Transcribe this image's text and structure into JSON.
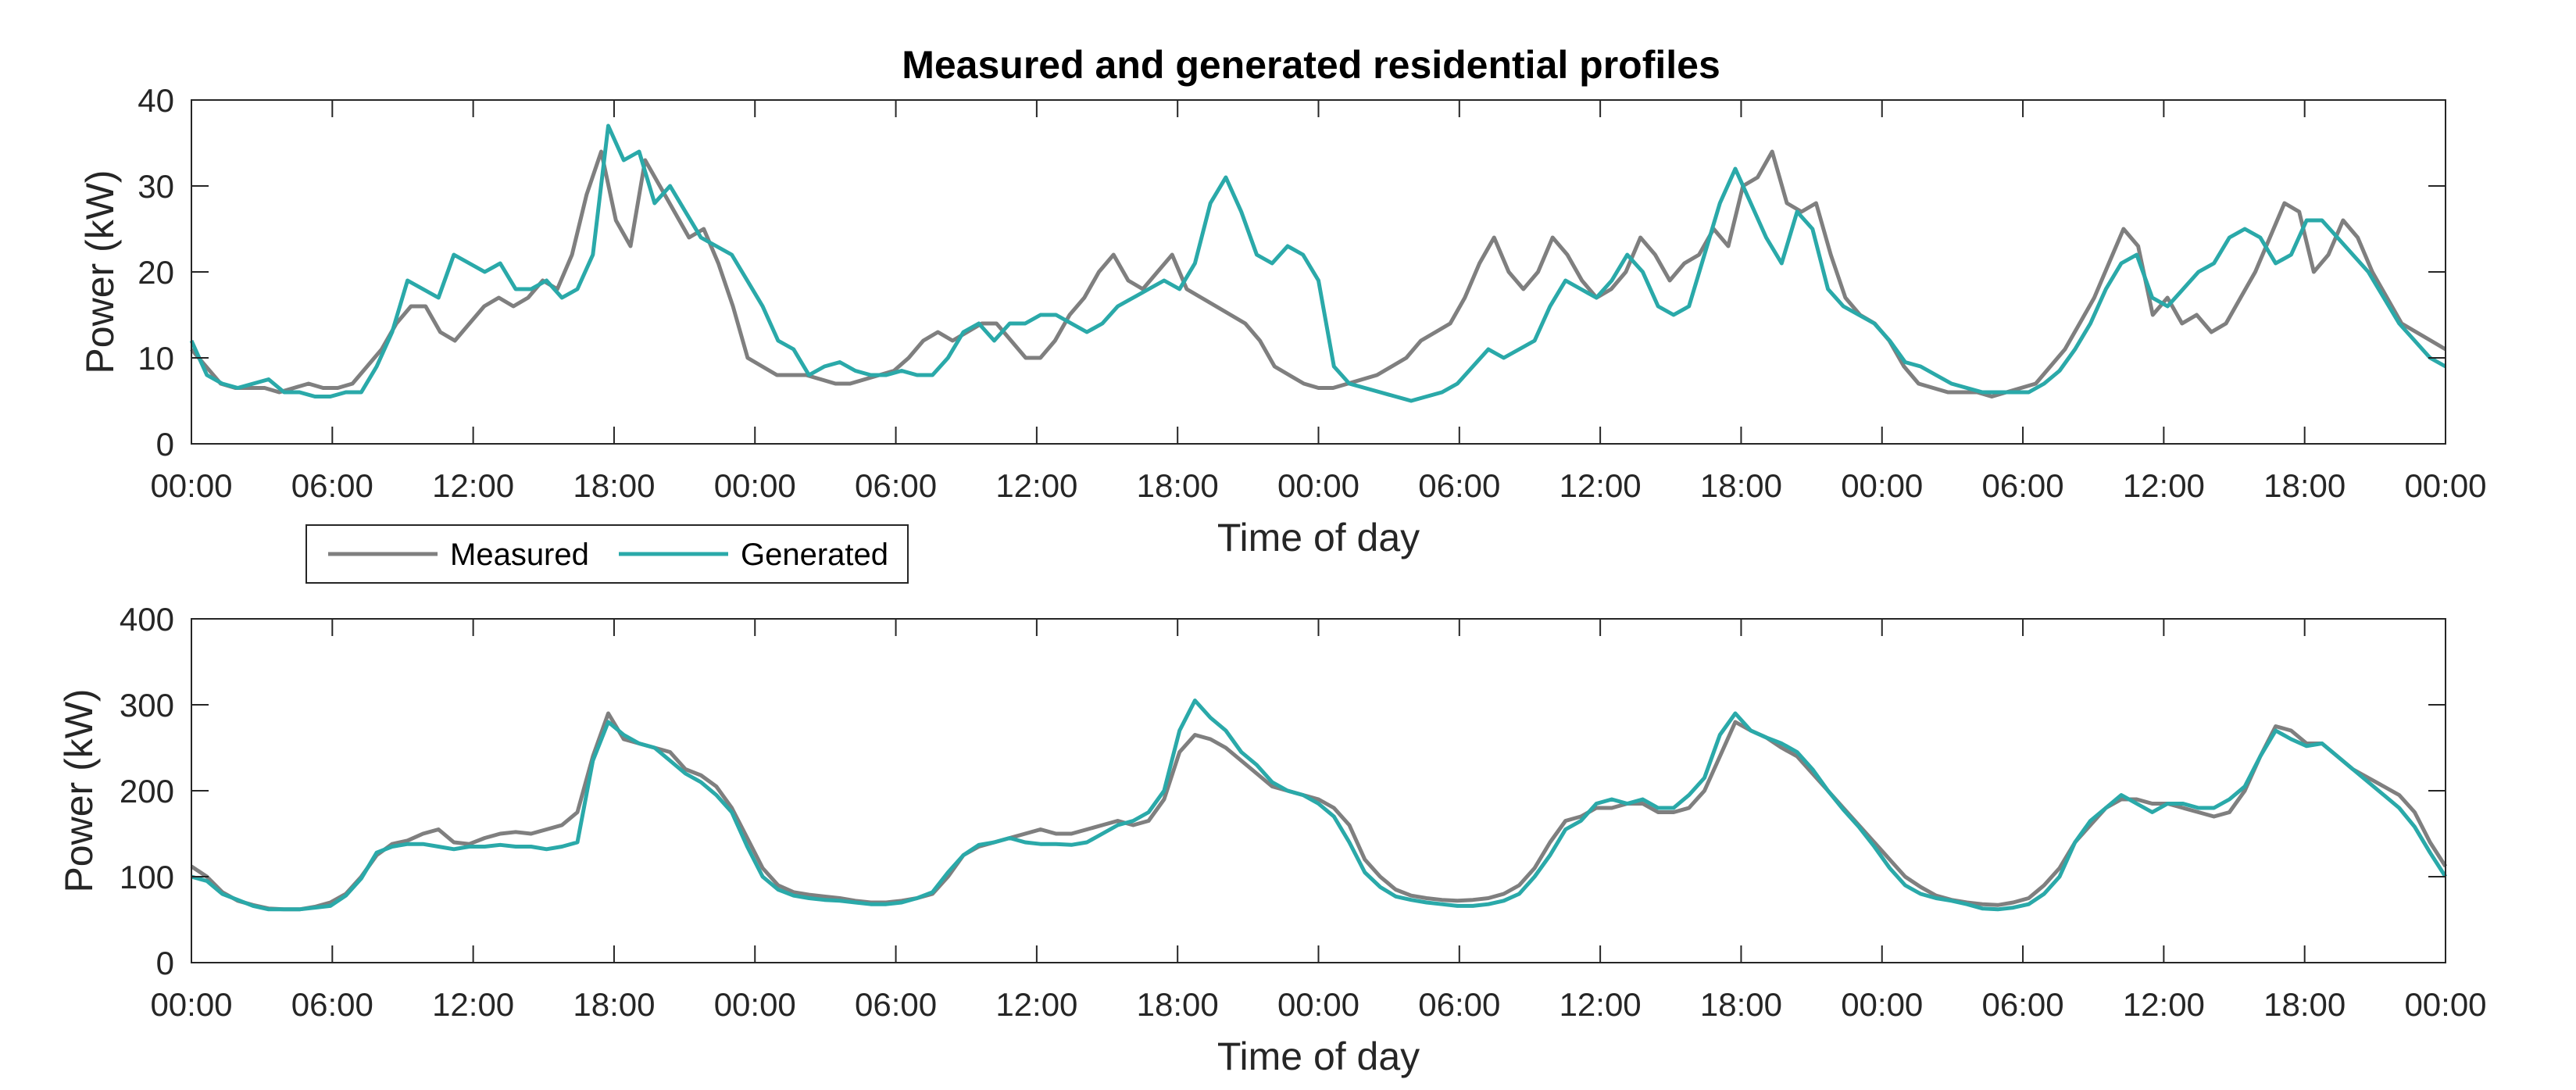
{
  "chart_data": {
    "type": "line",
    "title": "Measured and generated residential profiles",
    "colors": {
      "measured": "#7f7f7f",
      "generated": "#2aa9a9",
      "axis": "#262626"
    },
    "legend": {
      "placement": "top-left below top panel",
      "entries": [
        "Measured",
        "Generated"
      ]
    },
    "xticks": [
      "00:00",
      "06:00",
      "12:00",
      "18:00",
      "00:00",
      "06:00",
      "12:00",
      "18:00",
      "00:00",
      "06:00",
      "12:00",
      "18:00",
      "00:00",
      "06:00",
      "12:00",
      "18:00",
      "00:00"
    ],
    "x_hours_range": [
      0,
      96
    ],
    "panels": [
      {
        "xlabel": "Time of day",
        "ylabel": "Power (kW)",
        "ylim": [
          0,
          40
        ],
        "yticks": [
          0,
          10,
          20,
          30,
          40
        ],
        "series": [
          {
            "name": "Measured",
            "values": [
              11,
              9,
              7,
              6.5,
              6.5,
              6.5,
              6,
              6.5,
              7,
              6.5,
              6.5,
              7,
              9,
              11,
              14,
              16,
              16,
              13,
              12,
              14,
              16,
              17,
              16,
              17,
              19,
              18,
              22,
              29,
              34,
              26,
              23,
              33,
              30,
              27,
              24,
              25,
              21,
              16,
              10,
              9,
              8,
              8,
              8,
              7.5,
              7,
              7,
              7.5,
              8,
              8.5,
              10,
              12,
              13,
              12,
              13,
              14,
              14,
              12,
              10,
              10,
              12,
              15,
              17,
              20,
              22,
              19,
              18,
              20,
              22,
              18,
              17,
              16,
              15,
              14,
              12,
              9,
              8,
              7,
              6.5,
              6.5,
              7,
              7.5,
              8,
              9,
              10,
              12,
              13,
              14,
              17,
              21,
              24,
              20,
              18,
              20,
              24,
              22,
              19,
              17,
              18,
              20,
              24,
              22,
              19,
              21,
              22,
              25,
              23,
              30,
              31,
              34,
              28,
              27,
              28,
              22,
              17,
              15,
              14,
              12,
              9,
              7,
              6.5,
              6,
              6,
              6,
              5.5,
              6,
              6.5,
              7,
              9,
              11,
              14,
              17,
              21,
              25,
              23,
              15,
              17,
              14,
              15,
              13,
              14,
              17,
              20,
              24,
              28,
              27,
              20,
              22,
              26,
              24,
              20,
              17,
              14,
              13,
              12,
              11
            ]
          },
          {
            "name": "Generated",
            "values": [
              12,
              8,
              7,
              6.5,
              7,
              7.5,
              6,
              6,
              5.5,
              5.5,
              6,
              6,
              9,
              13,
              19,
              18,
              17,
              22,
              21,
              20,
              21,
              18,
              18,
              19,
              17,
              18,
              22,
              37,
              33,
              34,
              28,
              30,
              27,
              24,
              23,
              22,
              19,
              16,
              12,
              11,
              8,
              9,
              9.5,
              8.5,
              8,
              8,
              8.5,
              8,
              8,
              10,
              13,
              14,
              12,
              14,
              14,
              15,
              15,
              14,
              13,
              14,
              16,
              17,
              18,
              19,
              18,
              21,
              28,
              31,
              27,
              22,
              21,
              23,
              22,
              19,
              9,
              7,
              6.5,
              6,
              5.5,
              5,
              5.5,
              6,
              7,
              9,
              11,
              10,
              11,
              12,
              16,
              19,
              18,
              17,
              19,
              22,
              20,
              16,
              15,
              16,
              22,
              28,
              32,
              28,
              24,
              21,
              27,
              25,
              18,
              16,
              15,
              14,
              12,
              9.5,
              9,
              8,
              7,
              6.5,
              6,
              6,
              6,
              6,
              7,
              8.5,
              11,
              14,
              18,
              21,
              22,
              17,
              16,
              18,
              20,
              21,
              24,
              25,
              24,
              21,
              22,
              26,
              26,
              24,
              22,
              20,
              17,
              14,
              12,
              10,
              9
            ]
          }
        ]
      },
      {
        "xlabel": "Time of day",
        "ylabel": "Power (kW)",
        "ylim": [
          0,
          400
        ],
        "yticks": [
          0,
          100,
          200,
          300,
          400
        ],
        "series": [
          {
            "name": "Measured",
            "values": [
              112,
              100,
              82,
              72,
              67,
              63,
              62,
              62,
              65,
              70,
              80,
              100,
              125,
              138,
              142,
              150,
              155,
              140,
              138,
              145,
              150,
              152,
              150,
              155,
              160,
              175,
              240,
              290,
              260,
              255,
              250,
              245,
              225,
              218,
              205,
              180,
              145,
              110,
              90,
              82,
              79,
              77,
              75,
              72,
              70,
              70,
              72,
              75,
              80,
              100,
              125,
              135,
              140,
              145,
              150,
              155,
              150,
              150,
              155,
              160,
              165,
              160,
              165,
              190,
              245,
              265,
              260,
              250,
              235,
              220,
              205,
              200,
              195,
              190,
              180,
              160,
              120,
              100,
              85,
              78,
              75,
              73,
              72,
              73,
              75,
              80,
              90,
              110,
              140,
              165,
              170,
              180,
              180,
              185,
              185,
              175,
              175,
              180,
              200,
              240,
              280,
              270,
              262,
              250,
              240,
              220,
              200,
              180,
              160,
              140,
              120,
              100,
              88,
              78,
              73,
              70,
              68,
              67,
              70,
              75,
              90,
              110,
              140,
              160,
              180,
              190,
              190,
              185,
              185,
              180,
              175,
              170,
              175,
              200,
              240,
              275,
              270,
              255,
              255,
              240,
              225,
              215,
              205,
              195,
              175,
              140,
              112
            ]
          },
          {
            "name": "Generated",
            "values": [
              100,
              95,
              80,
              73,
              66,
              62,
              62,
              62,
              64,
              66,
              78,
              98,
              128,
              135,
              138,
              138,
              135,
              132,
              135,
              135,
              137,
              135,
              135,
              132,
              135,
              140,
              235,
              280,
              265,
              255,
              250,
              235,
              220,
              210,
              195,
              175,
              135,
              100,
              85,
              78,
              75,
              73,
              72,
              70,
              68,
              68,
              70,
              75,
              82,
              105,
              125,
              137,
              140,
              145,
              140,
              138,
              138,
              137,
              140,
              150,
              160,
              165,
              175,
              200,
              270,
              305,
              285,
              270,
              245,
              230,
              210,
              200,
              195,
              185,
              170,
              140,
              105,
              88,
              77,
              73,
              70,
              68,
              66,
              66,
              68,
              72,
              80,
              100,
              125,
              155,
              165,
              185,
              190,
              185,
              190,
              180,
              180,
              195,
              215,
              265,
              290,
              270,
              262,
              255,
              245,
              225,
              200,
              178,
              158,
              135,
              110,
              90,
              80,
              75,
              72,
              68,
              63,
              62,
              64,
              68,
              80,
              100,
              140,
              165,
              180,
              195,
              185,
              175,
              185,
              185,
              180,
              180,
              190,
              205,
              240,
              270,
              260,
              252,
              255,
              240,
              225,
              210,
              195,
              180,
              158,
              128,
              100
            ]
          }
        ]
      }
    ]
  }
}
